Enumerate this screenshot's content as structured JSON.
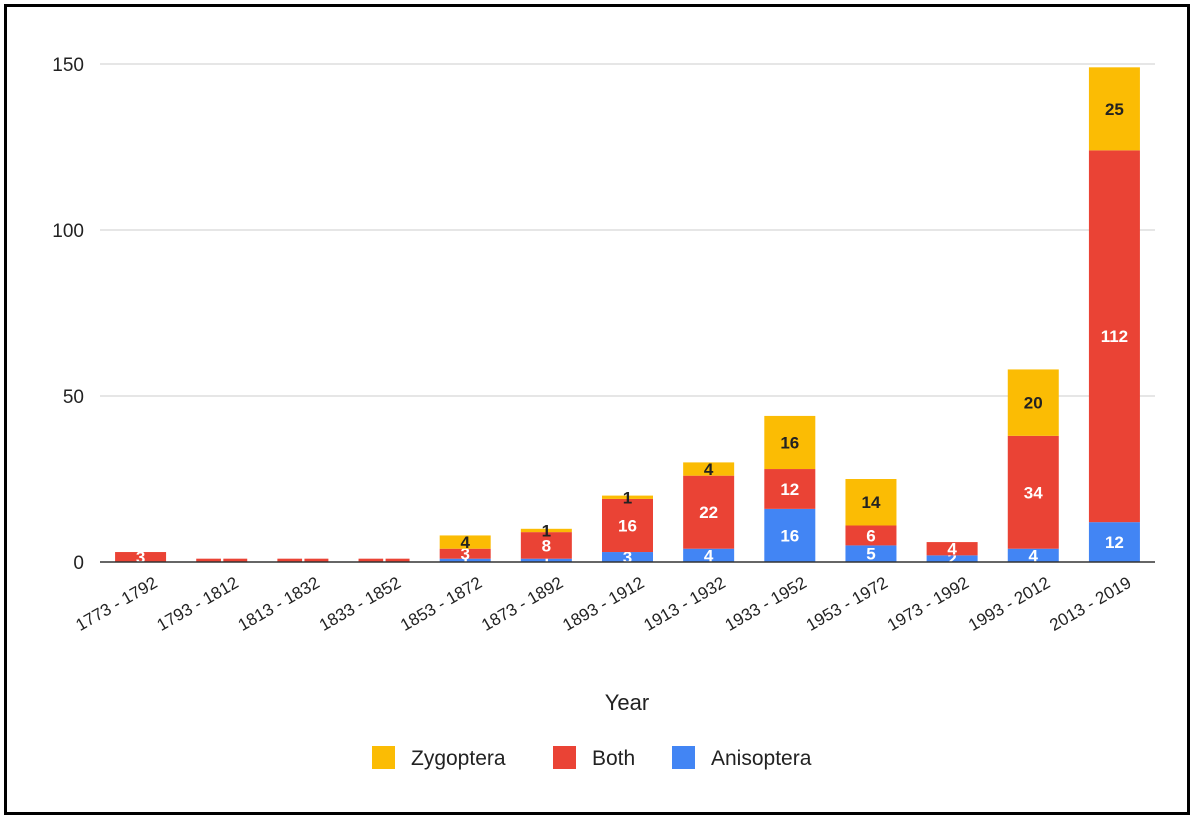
{
  "chart_data": {
    "type": "bar",
    "stacked": true,
    "title": "",
    "xlabel": "Year",
    "ylabel": "",
    "ylim": [
      0,
      150
    ],
    "yticks": [
      0,
      50,
      100,
      150
    ],
    "grid": true,
    "legend_position": "bottom",
    "categories": [
      "1773 - 1792",
      "1793 - 1812",
      "1813 - 1832",
      "1833 - 1852",
      "1853 - 1872",
      "1873 - 1892",
      "1893 - 1912",
      "1913 - 1932",
      "1933 - 1952",
      "1953 - 1972",
      "1973 - 1992",
      "1993 - 2012",
      "2013 - 2019"
    ],
    "series": [
      {
        "name": "Anisoptera",
        "color": "#4285F4",
        "values": [
          0,
          0,
          0,
          0,
          1,
          1,
          3,
          4,
          16,
          5,
          2,
          4,
          12
        ]
      },
      {
        "name": "Both",
        "color": "#EA4335",
        "values": [
          3,
          1,
          1,
          1,
          3,
          8,
          16,
          22,
          12,
          6,
          4,
          34,
          112
        ]
      },
      {
        "name": "Zygoptera",
        "color": "#FBBC04",
        "values": [
          0,
          0,
          0,
          0,
          4,
          1,
          1,
          4,
          16,
          14,
          0,
          20,
          25
        ]
      }
    ],
    "legend_order": [
      "Zygoptera",
      "Both",
      "Anisoptera"
    ]
  }
}
